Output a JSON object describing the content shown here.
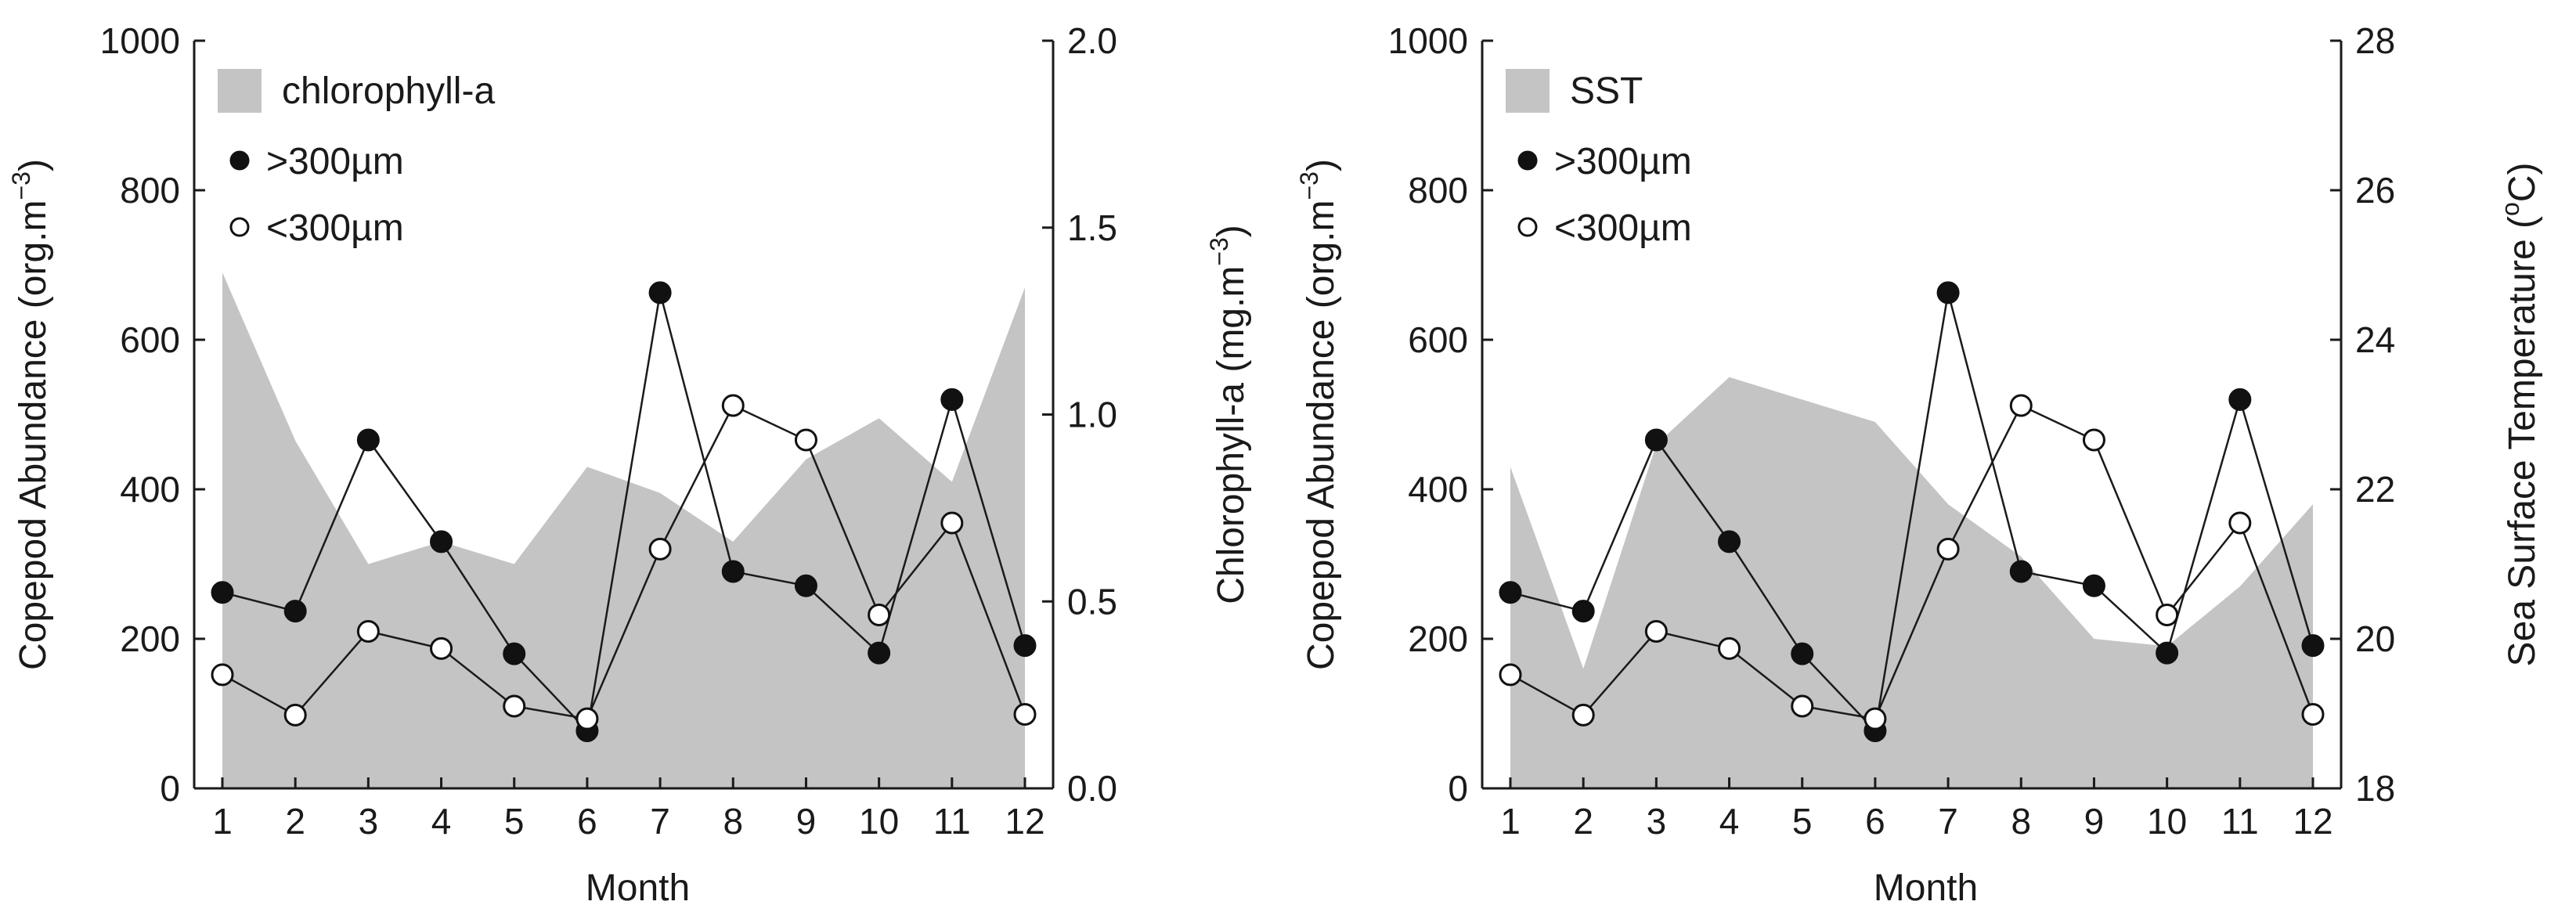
{
  "chart_data": [
    {
      "type": "line",
      "panel": "left",
      "x": [
        1,
        2,
        3,
        4,
        5,
        6,
        7,
        8,
        9,
        10,
        11,
        12
      ],
      "xticks": [
        "1",
        "2",
        "3",
        "4",
        "5",
        "6",
        "7",
        "8",
        "9",
        "10",
        "11",
        "12"
      ],
      "xlabel": "Month",
      "ylabel": "Copepod Abundance (org.m",
      "ylabel_sup": "−3",
      "ylabel_close": ")",
      "ylim": [
        0,
        1000
      ],
      "yticks": [
        "0",
        "200",
        "400",
        "600",
        "800",
        "1000"
      ],
      "y2label": "Chlorophyll-a (mg.m",
      "y2label_sup": "−3",
      "y2label_close": ")",
      "y2lim": [
        0.0,
        2.0
      ],
      "y2ticks": [
        "0.0",
        "0.5",
        "1.0",
        "1.5",
        "2.0"
      ],
      "area": {
        "name": "chlorophyll-a",
        "color": "#c4c4c4",
        "values": [
          1.38,
          0.93,
          0.6,
          0.66,
          0.6,
          0.86,
          0.79,
          0.66,
          0.88,
          0.99,
          0.82,
          1.34
        ]
      },
      "series": [
        {
          "name": ">300µm",
          "marker": "filled",
          "values": [
            262,
            237,
            466,
            330,
            180,
            77,
            663,
            290,
            271,
            181,
            520,
            191
          ]
        },
        {
          "name": "<300µm",
          "marker": "open",
          "values": [
            152,
            98,
            210,
            187,
            110,
            93,
            320,
            512,
            466,
            232,
            355,
            99
          ]
        }
      ]
    },
    {
      "type": "line",
      "panel": "right",
      "x": [
        1,
        2,
        3,
        4,
        5,
        6,
        7,
        8,
        9,
        10,
        11,
        12
      ],
      "xticks": [
        "1",
        "2",
        "3",
        "4",
        "5",
        "6",
        "7",
        "8",
        "9",
        "10",
        "11",
        "12"
      ],
      "xlabel": "Month",
      "ylabel": "Copepod Abundance (org.m",
      "ylabel_sup": "−3",
      "ylabel_close": ")",
      "ylim": [
        0,
        1000
      ],
      "yticks": [
        "0",
        "200",
        "400",
        "600",
        "800",
        "1000"
      ],
      "y2label": "Sea Surface Temperature (",
      "y2label_sup": "o",
      "y2label_close": "C)",
      "y2lim": [
        18,
        28
      ],
      "y2ticks": [
        "18",
        "20",
        "22",
        "24",
        "26",
        "28"
      ],
      "area": {
        "name": "SST",
        "color": "#c4c4c4",
        "values": [
          22.3,
          19.6,
          22.6,
          23.5,
          23.2,
          22.9,
          21.8,
          21.1,
          20.0,
          19.9,
          20.7,
          21.8
        ]
      },
      "series": [
        {
          "name": ">300µm",
          "marker": "filled",
          "values": [
            262,
            237,
            466,
            330,
            180,
            77,
            663,
            290,
            271,
            181,
            520,
            191
          ]
        },
        {
          "name": "<300µm",
          "marker": "open",
          "values": [
            152,
            98,
            210,
            187,
            110,
            93,
            320,
            512,
            466,
            232,
            355,
            99
          ]
        }
      ]
    }
  ]
}
